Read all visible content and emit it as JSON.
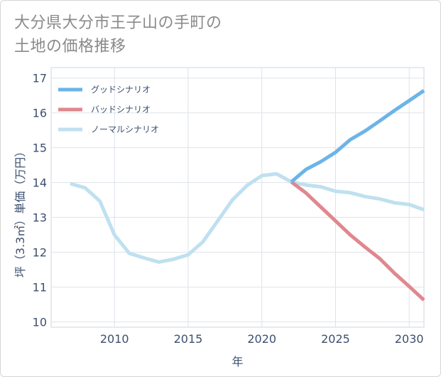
{
  "title_lines": [
    "大分県大分市王子山の手町の",
    "土地の価格推移"
  ],
  "chart_data": {
    "type": "line",
    "title": "大分県大分市王子山の手町の土地の価格推移",
    "xlabel": "年",
    "ylabel": "坪（3.3㎡）単価（万円）",
    "xlim": [
      2005.7,
      2031
    ],
    "ylim": [
      9.85,
      17.3
    ],
    "xticks": [
      2010,
      2015,
      2020,
      2025,
      2030
    ],
    "yticks": [
      10,
      11,
      12,
      13,
      14,
      15,
      16,
      17
    ],
    "grid": true,
    "legend_position": "top-left",
    "series": [
      {
        "name": "グッドシナリオ",
        "color": "#6cb4e8",
        "x": [
          2022,
          2023,
          2024,
          2025,
          2026,
          2027,
          2028,
          2029,
          2030,
          2031
        ],
        "y": [
          14.02,
          14.38,
          14.6,
          14.87,
          15.23,
          15.48,
          15.77,
          16.07,
          16.35,
          16.64
        ]
      },
      {
        "name": "バッドシナリオ",
        "color": "#e0878f",
        "x": [
          2022,
          2023,
          2024,
          2025,
          2026,
          2027,
          2028,
          2029,
          2030,
          2031
        ],
        "y": [
          14.02,
          13.7,
          13.3,
          12.9,
          12.5,
          12.15,
          11.82,
          11.4,
          11.02,
          10.63
        ]
      },
      {
        "name": "ノーマルシナリオ",
        "color": "#bfe0ef",
        "x": [
          2007,
          2008,
          2009,
          2010,
          2011,
          2012,
          2013,
          2014,
          2015,
          2016,
          2017,
          2018,
          2019,
          2020,
          2021,
          2022,
          2023,
          2024,
          2025,
          2026,
          2027,
          2028,
          2029,
          2030,
          2031
        ],
        "y": [
          13.97,
          13.85,
          13.47,
          12.5,
          11.97,
          11.84,
          11.72,
          11.8,
          11.93,
          12.3,
          12.9,
          13.5,
          13.92,
          14.2,
          14.25,
          14.02,
          13.93,
          13.88,
          13.75,
          13.71,
          13.6,
          13.53,
          13.42,
          13.37,
          13.22
        ]
      }
    ]
  }
}
